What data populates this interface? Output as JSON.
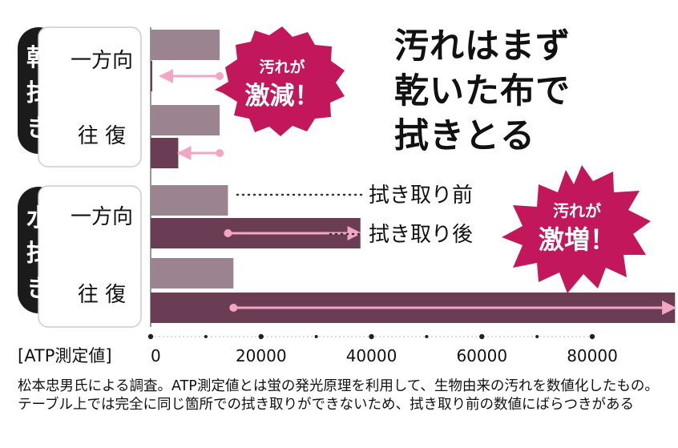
{
  "headline": [
    "汚れはまず",
    "乾いた布で",
    "拭きとる"
  ],
  "groups": [
    {
      "label": "乾拭き",
      "chars": [
        "乾",
        "拭",
        "き"
      ]
    },
    {
      "label": "水拭き",
      "chars": [
        "水",
        "拭",
        "き"
      ]
    }
  ],
  "row_labels": [
    "一方向",
    "往 復",
    "一方向",
    "往 復"
  ],
  "legend": {
    "before": "拭き取り前",
    "after": "拭き取り後"
  },
  "badges": [
    {
      "top": "汚れが",
      "bottom": "激減！",
      "color": "#c2185b"
    },
    {
      "top": "汚れが",
      "bottom": "激増！",
      "color": "#c2185b"
    }
  ],
  "axis_label": "[ATP測定値]",
  "note": "松本忠男氏による調査。ATP測定値とは蛍の発光原理を利用して、生物由来の汚れを数値化したもの。テーブル上では完全に同じ箇所での拭き取りができないため、拭き取り前の数値にばらつきがある",
  "colors": {
    "before": "#9c8390",
    "after": "#6b3d55",
    "arrow": "#f3a6c4",
    "badge": "#c2185b"
  },
  "chart_data": {
    "type": "bar",
    "orientation": "horizontal",
    "categories": [
      "乾拭き 一方向",
      "乾拭き 往復",
      "水拭き 一方向",
      "水拭き 往復"
    ],
    "series": [
      {
        "name": "拭き取り前",
        "values": [
          12500,
          12500,
          14000,
          15000
        ]
      },
      {
        "name": "拭き取り後",
        "values": [
          0,
          5000,
          38000,
          95000
        ]
      }
    ],
    "xlim": [
      0,
      100000
    ],
    "xticks": [
      0,
      20000,
      40000,
      60000,
      80000
    ],
    "tick_labels": [
      "0",
      "20000",
      "40000",
      "60000",
      "80000"
    ],
    "xlabel": "[ATP測定値]"
  }
}
